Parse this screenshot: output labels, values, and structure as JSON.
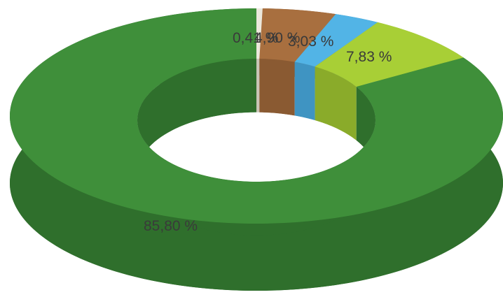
{
  "chart_data": {
    "type": "pie",
    "style": "3d-donut",
    "legend": "none",
    "labels": [
      "0,41 %",
      "4,90 %",
      "3,03 %",
      "7,83 %",
      "85,80 %"
    ],
    "values": [
      0.41,
      4.9,
      3.03,
      7.83,
      85.8
    ],
    "colors": [
      "#ece8dc",
      "#a86f3f",
      "#52b4e6",
      "#a8cf36",
      "#3f8f3a"
    ],
    "side_colors": [
      "#c9c4b6",
      "#8a5a32",
      "#3f94c2",
      "#8aab2a",
      "#2f6f2c"
    ]
  }
}
